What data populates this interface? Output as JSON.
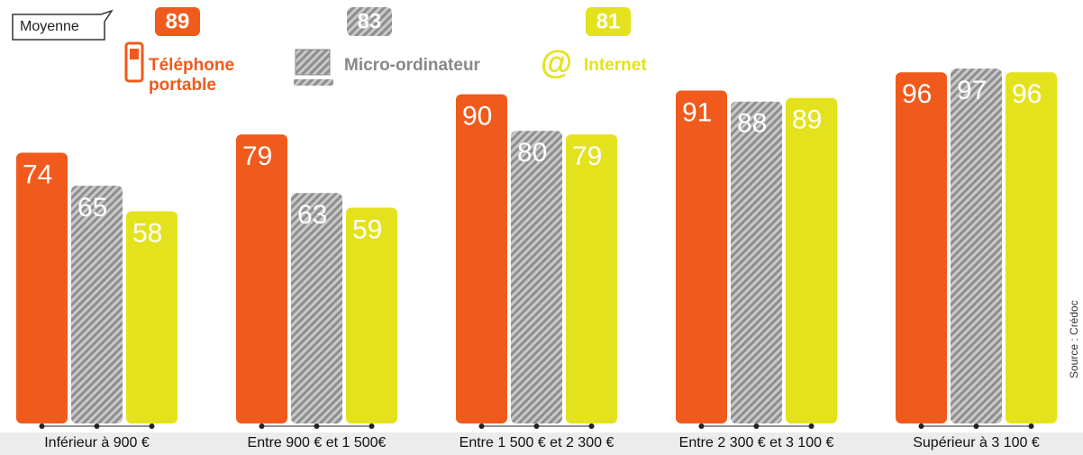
{
  "chart_data": {
    "type": "bar",
    "average_label": "Moyenne",
    "categories": [
      "Inférieur à 900 €",
      "Entre 900 € et 1 500€",
      "Entre 1 500 € et 2 300 €",
      "Entre 2 300 € et 3 100 €",
      "Supérieur à 3 100 €"
    ],
    "series": [
      {
        "name": "Téléphone portable",
        "color": "#f05a1c",
        "average": 89,
        "values": [
          74,
          79,
          90,
          91,
          96
        ]
      },
      {
        "name": "Micro-ordinateur",
        "color": "#9a9a9a",
        "hatch": true,
        "average": 83,
        "values": [
          65,
          63,
          80,
          88,
          97
        ]
      },
      {
        "name": "Internet",
        "color": "#e4e21c",
        "average": 81,
        "values": [
          58,
          59,
          79,
          89,
          96
        ]
      }
    ],
    "ylim": [
      0,
      100
    ],
    "source": "Source : Crédoc"
  }
}
